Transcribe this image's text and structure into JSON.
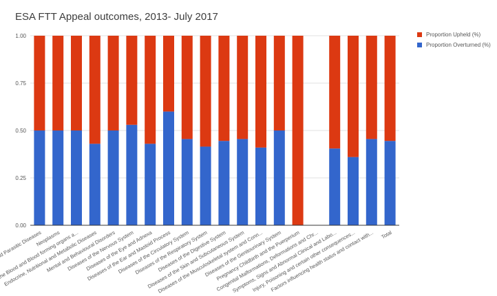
{
  "colors": {
    "upheld": "#dc3912",
    "overturned": "#3366cc",
    "grid": "#e0e0e0",
    "axis": "#333333",
    "text": "#555555"
  },
  "chart_data": {
    "type": "bar",
    "stacked": true,
    "title": "ESA FTT Appeal outcomes, 2013- July 2017",
    "xlabel": "",
    "ylabel": "",
    "ylim": [
      0,
      1
    ],
    "yticks": [
      "0.00",
      "0.25",
      "0.50",
      "0.75",
      "1.00"
    ],
    "legend_position": "right",
    "categories": [
      "Certain Infectious and Parasitic Diseases",
      "Neoplasms",
      "Diseases of the Blood and Blood forming organs a...",
      "Endocrine, Nutritional and Metabolic Diseases",
      "Mental and Behavioural Disorders",
      "Diseases of the Nervous System",
      "Diseases of the Eye and Adnexa",
      "Diseases of the Ear and Mastoid Process",
      "Diseases of the Circulatory System",
      "Diseases of the Respiratory System",
      "Diseases of the Digestive System",
      "Diseases of the Skin and Subcutaneous System",
      "Diseases of the Musculoskeletal system and Conn...",
      "Diseases of the Genitourinary System",
      "Pregnancy Childbirth and the Puerperium",
      "Congenital Malformations, Deformations and Chr...",
      "Symptoms, Signs and Abnormal Clinical and Labo...",
      "Injury, Poisoning and certain other consequences...",
      "Factors influencing health status and contact with...",
      "Total"
    ],
    "series": [
      {
        "name": "Proportion Upheld (%)",
        "values": [
          0.5,
          0.5,
          0.5,
          0.57,
          0.5,
          0.47,
          0.57,
          0.4,
          0.545,
          0.585,
          0.555,
          0.545,
          0.59,
          0.5,
          1.0,
          0,
          0.595,
          0.64,
          0.545,
          0.555
        ]
      },
      {
        "name": "Proportion Overturned (%)",
        "values": [
          0.5,
          0.5,
          0.5,
          0.43,
          0.5,
          0.53,
          0.43,
          0.6,
          0.455,
          0.415,
          0.445,
          0.455,
          0.41,
          0.5,
          0.0,
          0,
          0.405,
          0.36,
          0.455,
          0.445
        ]
      }
    ]
  }
}
